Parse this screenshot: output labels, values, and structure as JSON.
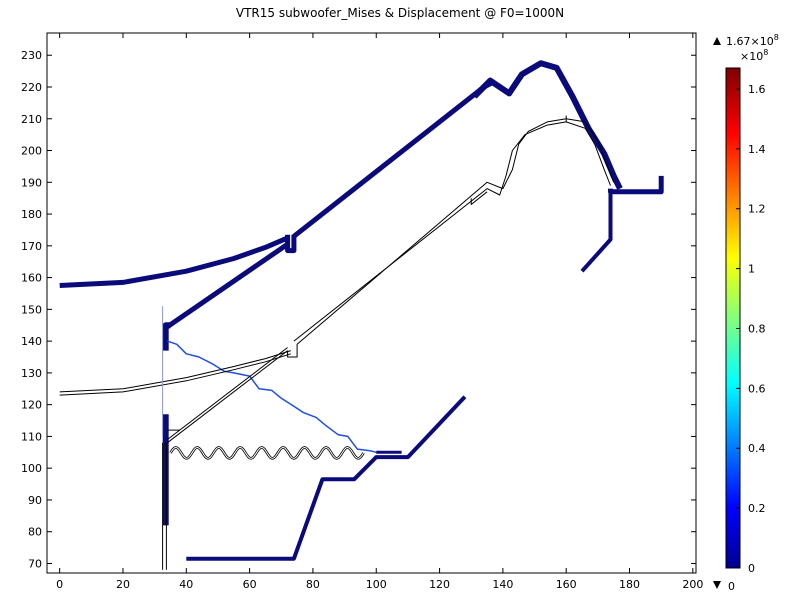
{
  "chart_data": {
    "type": "line",
    "title": "VTR15 subwoofer_Mises & Displacement @ F0=1000N",
    "xlabel": "",
    "ylabel": "",
    "xlim": [
      -4,
      201
    ],
    "ylim": [
      67,
      237
    ],
    "x_ticks": [
      0,
      20,
      40,
      60,
      80,
      100,
      120,
      140,
      160,
      180,
      200
    ],
    "y_ticks": [
      70,
      80,
      90,
      100,
      110,
      120,
      130,
      140,
      150,
      160,
      170,
      180,
      190,
      200,
      210,
      220,
      230
    ],
    "grid": false,
    "colorbar": {
      "max_label": "1.67×10",
      "max_exp": "8",
      "scale_label": "×10",
      "scale_exp": "8",
      "min_label": "0",
      "range": [
        0,
        1.67
      ],
      "ticks": [
        0,
        0.2,
        0.4,
        0.6,
        0.8,
        1,
        1.2,
        1.4,
        1.6
      ],
      "tick_labels": [
        "0",
        "0.2",
        "0.4",
        "0.6",
        "0.8",
        "1",
        "1.2",
        "1.4",
        "1.6"
      ],
      "colormap": [
        "#00008f",
        "#0000ff",
        "#00ffff",
        "#ffff00",
        "#ff0000",
        "#800000"
      ]
    },
    "series": [
      {
        "kind": "deformed",
        "color": "#0a0a7a",
        "width": 5,
        "points": [
          [
            0,
            157.5
          ],
          [
            20,
            158.5
          ],
          [
            40,
            162
          ],
          [
            55,
            166
          ],
          [
            65,
            169.5
          ],
          [
            72,
            172.5
          ]
        ]
      },
      {
        "kind": "deformed",
        "color": "#0a0a7a",
        "width": 5,
        "points": [
          [
            72,
            173.5
          ],
          [
            72,
            168.5
          ],
          [
            74,
            168.5
          ],
          [
            74,
            173.5
          ]
        ]
      },
      {
        "kind": "deformed",
        "color": "#0a0a7a",
        "width": 5,
        "points": [
          [
            34,
            144.5
          ],
          [
            72,
            170.5
          ]
        ]
      },
      {
        "kind": "deformed",
        "color": "#0a0a7a",
        "width": 5,
        "points": [
          [
            74,
            173
          ],
          [
            134,
            220
          ],
          [
            137,
            221.5
          ]
        ]
      },
      {
        "kind": "deformed",
        "color": "#0a0a7a",
        "width": 6,
        "points": [
          [
            131,
            217
          ],
          [
            136,
            222
          ],
          [
            142,
            218
          ],
          [
            146,
            224
          ],
          [
            152,
            227.5
          ],
          [
            157,
            226
          ],
          [
            162,
            217
          ],
          [
            167,
            207
          ],
          [
            172,
            199
          ],
          [
            175,
            192
          ],
          [
            177,
            188
          ]
        ]
      },
      {
        "kind": "deformed",
        "color": "#0a0a7a",
        "width": 5,
        "points": [
          [
            174,
            188
          ],
          [
            174,
            187
          ],
          [
            190,
            187
          ],
          [
            190,
            192
          ]
        ]
      },
      {
        "kind": "deformed",
        "color": "#0a0a7a",
        "width": 4,
        "points": [
          [
            174,
            187
          ],
          [
            174,
            172
          ],
          [
            165,
            162
          ]
        ]
      },
      {
        "kind": "deformed",
        "color": "#0a0a7a",
        "width": 6,
        "points": [
          [
            33.5,
            137
          ],
          [
            33.5,
            145
          ],
          [
            35,
            145
          ]
        ]
      },
      {
        "kind": "deformed",
        "color": "#0a0a7a",
        "width": 6,
        "points": [
          [
            33.5,
            82
          ],
          [
            33.5,
            117
          ]
        ]
      },
      {
        "kind": "deformed",
        "color": "#0a0a7a",
        "width": 4,
        "points": [
          [
            40,
            71.5
          ],
          [
            74,
            71.5
          ],
          [
            83,
            96.5
          ],
          [
            93,
            96.5
          ],
          [
            100,
            103.5
          ],
          [
            110,
            103.5
          ],
          [
            128,
            122.5
          ]
        ]
      },
      {
        "kind": "deformed",
        "color": "#0a0a7a",
        "width": 3,
        "points": [
          [
            100,
            105
          ],
          [
            108,
            105
          ]
        ]
      },
      {
        "kind": "deformed",
        "color": "#1f4fe0",
        "width": 1.5,
        "points": [
          [
            34,
            140
          ],
          [
            37,
            139
          ],
          [
            40,
            136
          ],
          [
            44,
            135
          ],
          [
            48,
            133
          ],
          [
            52,
            130.5
          ],
          [
            55,
            130
          ],
          [
            60,
            129
          ],
          [
            63,
            125
          ],
          [
            67,
            124.5
          ],
          [
            70,
            122
          ],
          [
            74,
            119.5
          ],
          [
            77,
            117.5
          ],
          [
            81,
            116
          ],
          [
            84,
            113.5
          ],
          [
            88,
            110.5
          ],
          [
            91,
            110
          ],
          [
            94,
            106
          ],
          [
            98,
            105.5
          ],
          [
            100,
            105
          ]
        ]
      },
      {
        "kind": "undeformed",
        "color": "#000000",
        "width": 1,
        "points": [
          [
            0,
            124
          ],
          [
            20,
            125
          ],
          [
            40,
            128.5
          ],
          [
            55,
            132
          ],
          [
            65,
            134.5
          ],
          [
            73,
            137
          ]
        ]
      },
      {
        "kind": "undeformed",
        "color": "#000000",
        "width": 1,
        "points": [
          [
            0,
            123
          ],
          [
            20,
            124
          ],
          [
            40,
            127.5
          ],
          [
            55,
            131
          ],
          [
            65,
            133.5
          ],
          [
            73,
            136
          ]
        ]
      },
      {
        "kind": "undeformed",
        "color": "#000000",
        "width": 1,
        "points": [
          [
            34,
            109
          ],
          [
            72,
            138
          ]
        ]
      },
      {
        "kind": "undeformed",
        "color": "#000000",
        "width": 1,
        "points": [
          [
            34,
            108
          ],
          [
            72,
            137
          ]
        ]
      },
      {
        "kind": "undeformed",
        "color": "#000000",
        "width": 1,
        "points": [
          [
            72,
            137
          ],
          [
            72,
            135
          ],
          [
            75,
            135
          ],
          [
            75,
            139
          ],
          [
            135,
            190
          ],
          [
            140,
            188
          ],
          [
            143,
            194
          ],
          [
            145,
            202
          ],
          [
            148,
            206
          ],
          [
            154,
            209
          ],
          [
            160,
            210
          ],
          [
            166,
            209
          ],
          [
            170,
            203
          ],
          [
            173,
            195
          ],
          [
            175,
            190
          ]
        ]
      },
      {
        "kind": "undeformed",
        "color": "#000000",
        "width": 1,
        "points": [
          [
            74,
            140
          ],
          [
            135,
            188
          ],
          [
            139,
            186
          ],
          [
            141,
            192
          ],
          [
            143,
            200
          ],
          [
            147,
            205
          ],
          [
            154,
            208
          ],
          [
            160,
            209
          ],
          [
            166,
            207
          ],
          [
            169,
            202
          ],
          [
            172,
            194
          ],
          [
            174,
            189
          ]
        ]
      },
      {
        "kind": "undeformed",
        "color": "#000000",
        "width": 1,
        "points": [
          [
            130,
            185
          ],
          [
            130,
            183
          ],
          [
            135,
            187
          ]
        ]
      },
      {
        "kind": "undeformed",
        "color": "#000000",
        "width": 1,
        "points": [
          [
            34,
            112
          ],
          [
            38,
            112
          ]
        ]
      },
      {
        "kind": "undeformed",
        "color": "#000000",
        "width": 1,
        "points": [
          [
            32.5,
            68
          ],
          [
            32.5,
            108
          ]
        ]
      },
      {
        "kind": "undeformed",
        "color": "#000000",
        "width": 1,
        "points": [
          [
            33.7,
            68
          ],
          [
            33.7,
            108
          ]
        ]
      },
      {
        "kind": "undeformed",
        "color": "#000000",
        "width": 1,
        "points": [
          [
            160,
            209
          ],
          [
            160,
            211
          ]
        ]
      },
      {
        "kind": "undeformed",
        "color": "#8899cc",
        "width": 1,
        "points": [
          [
            32.5,
            110
          ],
          [
            32.5,
            151
          ]
        ]
      }
    ],
    "surround_wave": {
      "x_start": 35,
      "x_end": 96,
      "y_center": 104.8,
      "amplitude": 1.7,
      "periods": 9,
      "color": "#000000"
    }
  }
}
